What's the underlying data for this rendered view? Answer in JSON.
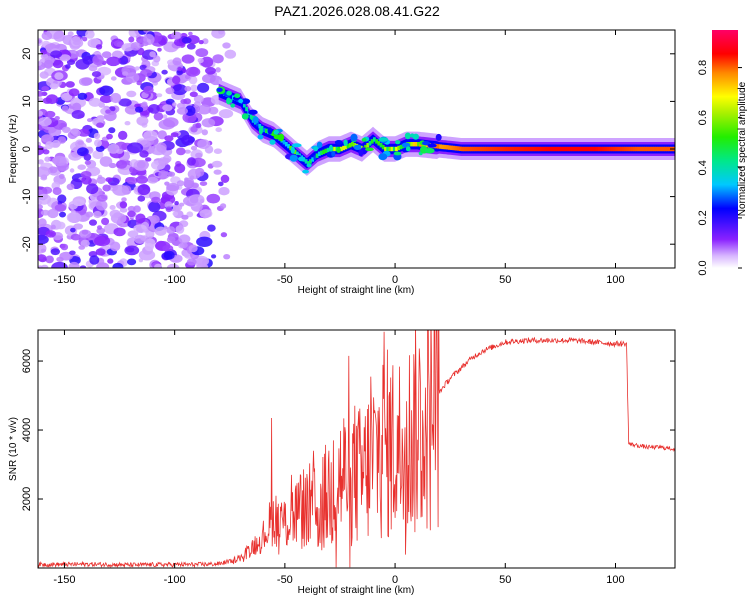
{
  "chart_data": [
    {
      "type": "heatmap",
      "title": "PAZ1.2026.028.08.41.G22",
      "xlabel": "Height of straight line (km)",
      "ylabel": "Frequency (Hz)",
      "xlim": [
        -162,
        127
      ],
      "ylim": [
        -25,
        25
      ],
      "xticks": [
        -150,
        -100,
        -50,
        0,
        50,
        100
      ],
      "yticks": [
        -20,
        -10,
        0,
        10,
        20
      ],
      "noise_region_x": [
        -162,
        -80
      ],
      "ridge": {
        "x": [
          -80,
          -75,
          -70,
          -65,
          -60,
          -55,
          -50,
          -45,
          -40,
          -35,
          -30,
          -25,
          -20,
          -15,
          -10,
          -5,
          0,
          5,
          10,
          20,
          30,
          50,
          70,
          90,
          110,
          127
        ],
        "freq": [
          12,
          11,
          10,
          6,
          4,
          3,
          1,
          -1,
          -3,
          -1,
          0,
          0,
          1,
          0,
          2,
          0,
          0,
          1,
          1,
          0.5,
          0,
          0,
          0,
          0,
          0,
          0
        ],
        "amplitude": [
          0.3,
          0.35,
          0.35,
          0.35,
          0.4,
          0.45,
          0.45,
          0.5,
          0.4,
          0.4,
          0.55,
          0.6,
          0.55,
          0.6,
          0.55,
          0.6,
          0.6,
          0.65,
          0.7,
          0.8,
          0.85,
          0.88,
          0.9,
          0.9,
          0.85,
          0.85
        ]
      },
      "colorbar": {
        "label": "Normalized spectral amplitude",
        "range": [
          0,
          0.95
        ],
        "ticks": [
          "0.0",
          "0.2",
          "0.4",
          "0.6",
          "0.8"
        ]
      }
    },
    {
      "type": "line",
      "xlabel": "Height of straight line (km)",
      "ylabel": "SNR (10 * v/v)",
      "xlim": [
        -162,
        127
      ],
      "ylim": [
        0,
        6900
      ],
      "xticks": [
        -150,
        -100,
        -50,
        0,
        50,
        100
      ],
      "yticks": [
        2000,
        4000,
        6000
      ],
      "series": [
        {
          "name": "SNR",
          "color": "#e8312e",
          "x": [
            -162,
            -140,
            -120,
            -100,
            -90,
            -80,
            -75,
            -70,
            -65,
            -60,
            -55,
            -50,
            -45,
            -40,
            -35,
            -30,
            -25,
            -20,
            -15,
            -10,
            -5,
            0,
            5,
            10,
            15,
            20,
            25,
            30,
            35,
            40,
            50,
            60,
            70,
            80,
            90,
            100,
            105,
            106,
            110,
            115,
            120,
            127
          ],
          "y": [
            100,
            110,
            90,
            100,
            100,
            120,
            200,
            300,
            600,
            900,
            1500,
            1300,
            1600,
            1800,
            1600,
            2200,
            2600,
            2800,
            2600,
            3200,
            3600,
            3500,
            3600,
            4100,
            4400,
            5100,
            5500,
            5800,
            6100,
            6300,
            6550,
            6600,
            6600,
            6600,
            6550,
            6500,
            6500,
            3600,
            3550,
            3500,
            3500,
            3450
          ],
          "spikes": [
            {
              "x": -56,
              "y": 4350
            },
            {
              "x": -47,
              "y": 2700
            },
            {
              "x": -37,
              "y": 3400
            },
            {
              "x": -28,
              "y": 3700
            },
            {
              "x": -21,
              "y": 6150
            },
            {
              "x": -11,
              "y": 5550
            },
            {
              "x": -5,
              "y": 6850
            }
          ]
        }
      ]
    }
  ]
}
